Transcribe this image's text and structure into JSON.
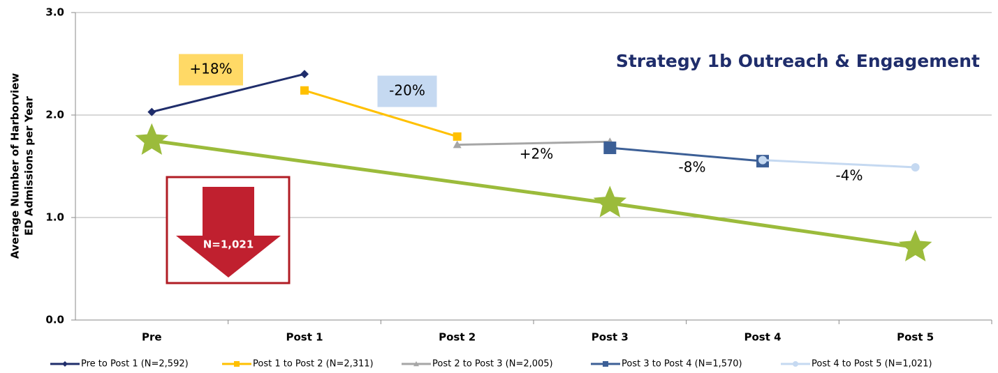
{
  "chart_data": {
    "type": "line",
    "title": "Strategy 1b Outreach & Engagement",
    "y_label": [
      "Average Number of Harborview",
      "ED Admissions per Year"
    ],
    "categories": [
      "Pre",
      "Post 1",
      "Post 2",
      "Post 3",
      "Post 4",
      "Post 5"
    ],
    "series": [
      {
        "name": "Pre to Post 1 (N=2,592)",
        "color": "#1f2d6b",
        "marker": "diamond",
        "values": [
          2.03,
          2.4,
          null,
          null,
          null,
          null
        ]
      },
      {
        "name": "Post 1 to Post 2 (N=2,311)",
        "color": "#ffc000",
        "marker": "square",
        "values": [
          null,
          2.24,
          1.79,
          null,
          null,
          null
        ]
      },
      {
        "name": "Post 2 to Post 3 (N=2,005)",
        "color": "#a6a6a6",
        "marker": "triangle",
        "values": [
          null,
          null,
          1.71,
          1.74,
          null,
          null
        ]
      },
      {
        "name": "Post 3 to Post 4 (N=1,570)",
        "color": "#3c5f96",
        "marker": "square",
        "values": [
          null,
          null,
          null,
          1.68,
          1.55,
          null
        ]
      },
      {
        "name": "Post 4 to Post 5 (N=1,021)",
        "color": "#c5d9f1",
        "marker": "circle",
        "values": [
          null,
          null,
          null,
          null,
          1.56,
          1.49
        ]
      }
    ],
    "trend": {
      "color": "#9bbb3b",
      "marker": "star",
      "values": [
        1.75,
        null,
        null,
        1.14,
        null,
        0.71
      ]
    },
    "annotations": [
      {
        "text": "+18%",
        "fill": "#ffd966"
      },
      {
        "text": "-20%",
        "fill": "#c5d9f1"
      },
      {
        "text": "+2%"
      },
      {
        "text": "-8%"
      },
      {
        "text": "-4%"
      }
    ],
    "callout": {
      "text": "N=1,021",
      "color": "#c0202f"
    },
    "ylim": [
      0,
      3
    ],
    "yticks": [
      {
        "value": 0,
        "label": "0.0"
      },
      {
        "value": 1,
        "label": "1.0"
      },
      {
        "value": 2,
        "label": "2.0"
      },
      {
        "value": 3,
        "label": "3.0"
      }
    ],
    "grid": true
  }
}
